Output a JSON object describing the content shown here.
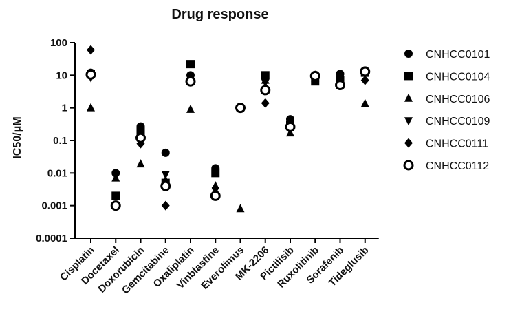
{
  "chart_data": {
    "type": "scatter",
    "title": "Drug response",
    "xlabel": "",
    "ylabel": "IC50/μM",
    "yscale": "log",
    "ylim": [
      0.0001,
      100
    ],
    "yticks": [
      "0.0001",
      "0.001",
      "0.01",
      "0.1",
      "1",
      "10",
      "100"
    ],
    "categories": [
      "Cisplatin",
      "Docetaxel",
      "Doxorubicin",
      "Gemcitabine",
      "Oxaliplatin",
      "Vinblastine",
      "Everolimus",
      "MK-2206",
      "Pictilisib",
      "Ruxolitinib",
      "Sorafenib",
      "Tideglusib"
    ],
    "legend_position": "right",
    "series": [
      {
        "name": "CNHCC0101",
        "marker": "circle",
        "values": [
          12,
          0.01,
          0.27,
          0.042,
          10,
          0.014,
          null,
          3.5,
          0.45,
          10,
          11,
          14
        ]
      },
      {
        "name": "CNHCC0104",
        "marker": "square",
        "values": [
          11,
          0.002,
          0.2,
          0.005,
          22,
          0.01,
          null,
          10,
          0.3,
          6.5,
          7,
          12
        ]
      },
      {
        "name": "CNHCC0106",
        "marker": "triangle-up",
        "values": [
          1,
          0.007,
          0.019,
          0.006,
          0.9,
          0.004,
          0.0008,
          7,
          0.17,
          8,
          6,
          1.35
        ]
      },
      {
        "name": "CNHCC0109",
        "marker": "triangle-down",
        "values": [
          8.5,
          null,
          0.12,
          0.009,
          6.5,
          0.003,
          null,
          6,
          0.2,
          9,
          5.5,
          11
        ]
      },
      {
        "name": "CNHCC0111",
        "marker": "diamond",
        "values": [
          60,
          null,
          0.08,
          0.001,
          7,
          null,
          null,
          1.4,
          0.3,
          10,
          6,
          7
        ]
      },
      {
        "name": "CNHCC0112",
        "marker": "circle-open",
        "values": [
          10.5,
          0.001,
          0.12,
          0.004,
          6.5,
          0.002,
          1,
          3.5,
          0.26,
          9.5,
          5,
          13
        ]
      }
    ]
  }
}
